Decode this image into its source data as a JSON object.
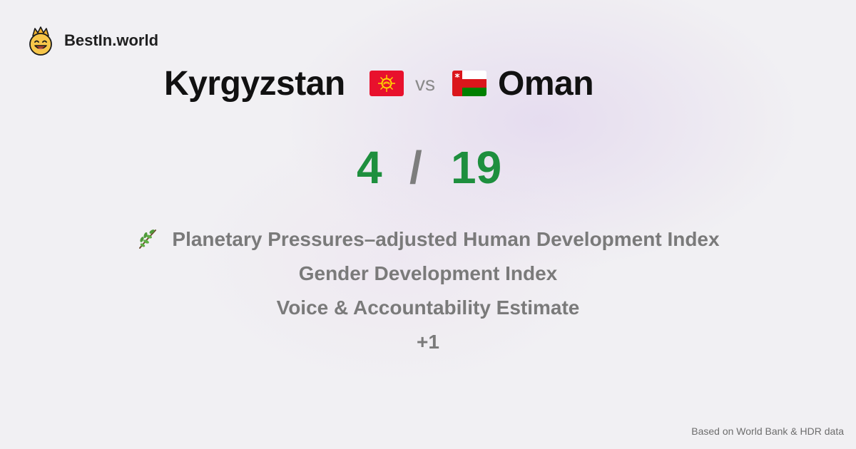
{
  "brand": {
    "name": "BestIn.world",
    "logo_icon": "crowned-smiley-icon"
  },
  "comparison": {
    "country_a": {
      "name": "Kyrgyzstan",
      "flag_icon": "kyrgyzstan-flag-icon",
      "score": "4"
    },
    "vs_label": "vs",
    "country_b": {
      "name": "Oman",
      "flag_icon": "oman-flag-icon",
      "score": "19"
    },
    "score_separator": "/"
  },
  "metrics": {
    "items": [
      {
        "label": "Planetary Pressures–adjusted Human Development Index",
        "icon": "herb-icon"
      },
      {
        "label": "Gender Development Index"
      },
      {
        "label": "Voice & Accountability Estimate"
      },
      {
        "label": "+1"
      }
    ]
  },
  "footer": {
    "note": "Based on World Bank & HDR data"
  },
  "colors": {
    "winner_score": "#1e8f3e",
    "separator": "#7d7d7d",
    "metric_text": "#7a7a7a",
    "background": "#f1f0f3"
  }
}
